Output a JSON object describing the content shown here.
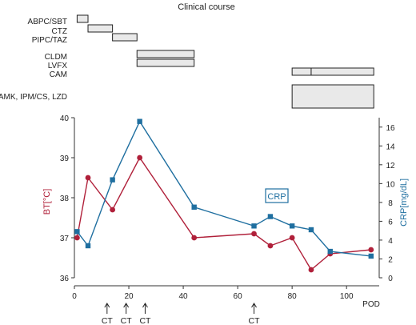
{
  "chart_data": {
    "title": "Clinical course",
    "type": "line",
    "xlabel": "POD",
    "xlim": [
      0,
      112
    ],
    "xticks": [
      0,
      20,
      40,
      60,
      80,
      100
    ],
    "drug_labels": [
      "ABPC/SBT",
      "CTZ",
      "PIPC/TAZ",
      "CLDM",
      "LVFX",
      "CAM",
      "AMK, IPM/CS, LZD"
    ],
    "drugs": [
      {
        "label_index": 0,
        "start": 1,
        "end": 5
      },
      {
        "label_index": 1,
        "start": 5,
        "end": 14
      },
      {
        "label_index": 2,
        "start": 14,
        "end": 23
      },
      {
        "label_index": 3,
        "start": 23,
        "end": 44
      },
      {
        "label_index": 4,
        "start": 23,
        "end": 44
      },
      {
        "label_index": 5,
        "start": 80,
        "end": 87
      },
      {
        "label_index": 5,
        "start": 87,
        "end": 110
      },
      {
        "label_index": 6,
        "start": 80,
        "end": 110
      }
    ],
    "bt": {
      "label": "BT[°C]",
      "color": "#b0203a",
      "ylim": [
        36,
        40
      ],
      "yticks": [
        36,
        37,
        38,
        39,
        40
      ],
      "x": [
        1,
        5,
        14,
        24,
        44,
        66,
        72,
        80,
        87,
        94,
        109
      ],
      "y": [
        37.0,
        38.5,
        37.7,
        39.0,
        37.0,
        37.1,
        36.8,
        37.0,
        36.2,
        36.6,
        36.7
      ]
    },
    "crp": {
      "label": "CRP[mg/dL]",
      "legend": "CRP",
      "color": "#1f6fa0",
      "ylim": [
        0,
        17
      ],
      "yticks": [
        0,
        2,
        4,
        6,
        8,
        10,
        12,
        14,
        16
      ],
      "x": [
        1,
        5,
        14,
        24,
        44,
        66,
        72,
        80,
        87,
        94,
        109
      ],
      "y": [
        4.9,
        3.4,
        10.4,
        16.6,
        7.5,
        5.5,
        6.5,
        5.5,
        5.1,
        2.8,
        2.3
      ]
    },
    "ct_label": "CT",
    "ct_marks": [
      12,
      19,
      26,
      66
    ]
  }
}
